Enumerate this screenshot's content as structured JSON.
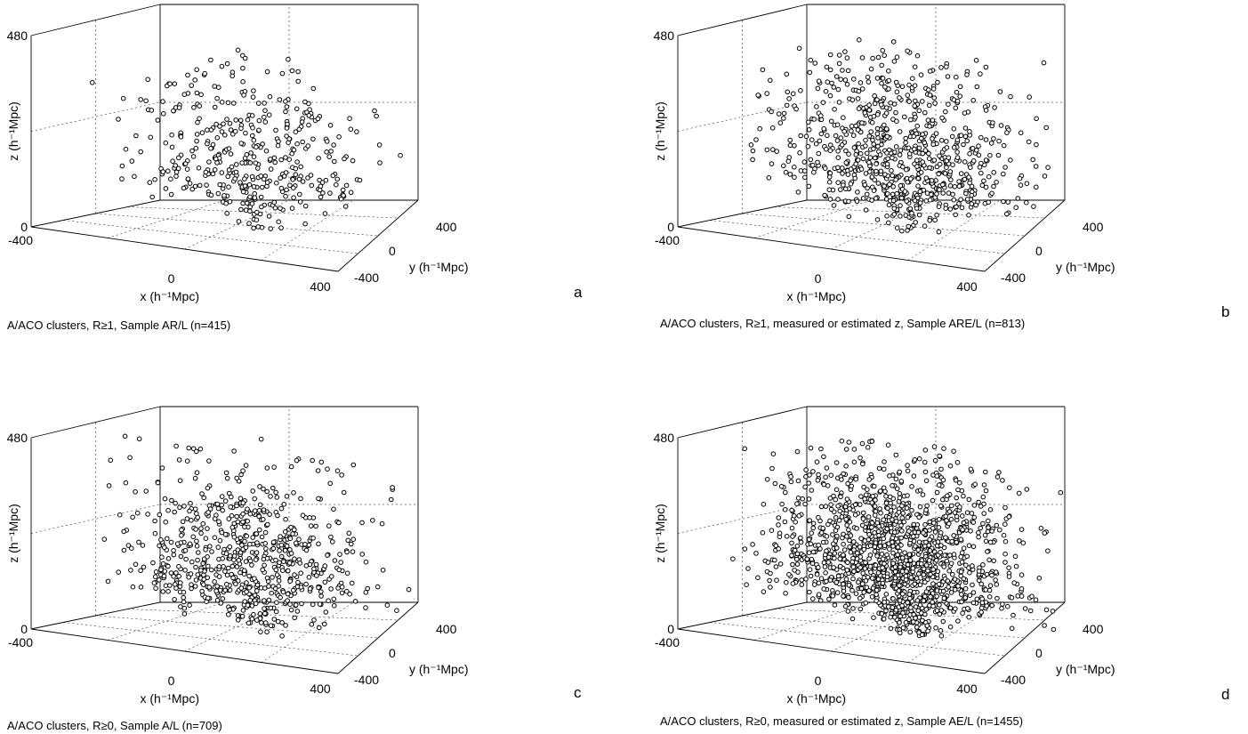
{
  "chart_data": [
    {
      "type": "scatter",
      "panel_label": "a",
      "caption": "A/ACO clusters, R≥1, Sample AR/L (n=415)",
      "n": 415,
      "xlabel": "x (h⁻¹Mpc)",
      "ylabel": "y (h⁻¹Mpc)",
      "zlabel": "z (h⁻¹Mpc)",
      "xlim": [
        -400,
        400
      ],
      "ylim": [
        -400,
        400
      ],
      "zlim": [
        0,
        480
      ],
      "x_ticks": [
        "-400",
        "0",
        "400"
      ],
      "y_ticks": [
        "-400",
        "0",
        "400"
      ],
      "z_ticks": [
        "0",
        "480"
      ],
      "grid": true,
      "projection": "3d"
    },
    {
      "type": "scatter",
      "panel_label": "b",
      "caption": "A/ACO clusters, R≥1, measured or estimated z, Sample ARE/L (n=813)",
      "n": 813,
      "xlabel": "x (h⁻¹Mpc)",
      "ylabel": "y (h⁻¹Mpc)",
      "zlabel": "z (h⁻¹Mpc)",
      "xlim": [
        -400,
        400
      ],
      "ylim": [
        -400,
        400
      ],
      "zlim": [
        0,
        480
      ],
      "x_ticks": [
        "-400",
        "0",
        "400"
      ],
      "y_ticks": [
        "-400",
        "0",
        "400"
      ],
      "z_ticks": [
        "0",
        "480"
      ],
      "grid": true,
      "projection": "3d"
    },
    {
      "type": "scatter",
      "panel_label": "c",
      "caption": "A/ACO clusters, R≥0, Sample A/L (n=709)",
      "n": 709,
      "xlabel": "x (h⁻¹Mpc)",
      "ylabel": "y (h⁻¹Mpc)",
      "zlabel": "z (h⁻¹Mpc)",
      "xlim": [
        -400,
        400
      ],
      "ylim": [
        -400,
        400
      ],
      "zlim": [
        0,
        480
      ],
      "x_ticks": [
        "-400",
        "0",
        "400"
      ],
      "y_ticks": [
        "-400",
        "0",
        "400"
      ],
      "z_ticks": [
        "0",
        "480"
      ],
      "grid": true,
      "projection": "3d"
    },
    {
      "type": "scatter",
      "panel_label": "d",
      "caption": "A/ACO clusters, R≥0, measured or estimated z, Sample AE/L (n=1455)",
      "n": 1455,
      "xlabel": "x (h⁻¹Mpc)",
      "ylabel": "y (h⁻¹Mpc)",
      "zlabel": "z (h⁻¹Mpc)",
      "xlim": [
        -400,
        400
      ],
      "ylim": [
        -400,
        400
      ],
      "zlim": [
        0,
        480
      ],
      "x_ticks": [
        "-400",
        "0",
        "400"
      ],
      "y_ticks": [
        "-400",
        "0",
        "400"
      ],
      "z_ticks": [
        "0",
        "480"
      ],
      "grid": true,
      "projection": "3d"
    }
  ]
}
